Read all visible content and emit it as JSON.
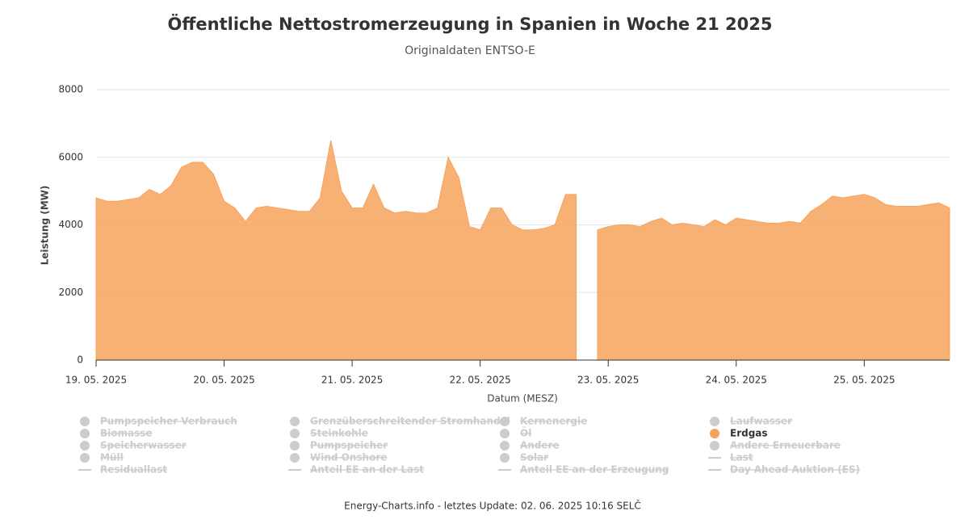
{
  "chart_data": {
    "type": "area",
    "title": "Öffentliche Nettostromerzeugung in Spanien in Woche 21 2025",
    "subtitle": "Originaldaten ENTSO-E",
    "x_label": "Datum (MESZ)",
    "y_label": "Leistung (MW)",
    "footer": "Energy-Charts.info - letztes Update: 02. 06. 2025 10:16 SELČ",
    "grid": true,
    "ylim": [
      0,
      8000
    ],
    "yticks": [
      0,
      2000,
      4000,
      6000,
      8000
    ],
    "xlim": [
      "2025-05-19T00:00",
      "2025-05-25T16:00"
    ],
    "xticks": [
      {
        "value": "2025-05-19T00:00",
        "label": "19. 05. 2025"
      },
      {
        "value": "2025-05-20T00:00",
        "label": "20. 05. 2025"
      },
      {
        "value": "2025-05-21T00:00",
        "label": "21. 05. 2025"
      },
      {
        "value": "2025-05-22T00:00",
        "label": "22. 05. 2025"
      },
      {
        "value": "2025-05-23T00:00",
        "label": "23. 05. 2025"
      },
      {
        "value": "2025-05-24T00:00",
        "label": "24. 05. 2025"
      },
      {
        "value": "2025-05-25T00:00",
        "label": "25. 05. 2025"
      }
    ],
    "x": [
      "2025-05-19T00:00",
      "2025-05-19T02:00",
      "2025-05-19T04:00",
      "2025-05-19T06:00",
      "2025-05-19T08:00",
      "2025-05-19T10:00",
      "2025-05-19T12:00",
      "2025-05-19T14:00",
      "2025-05-19T16:00",
      "2025-05-19T18:00",
      "2025-05-19T20:00",
      "2025-05-19T22:00",
      "2025-05-20T00:00",
      "2025-05-20T02:00",
      "2025-05-20T04:00",
      "2025-05-20T06:00",
      "2025-05-20T08:00",
      "2025-05-20T10:00",
      "2025-05-20T12:00",
      "2025-05-20T14:00",
      "2025-05-20T16:00",
      "2025-05-20T18:00",
      "2025-05-20T20:00",
      "2025-05-20T22:00",
      "2025-05-21T00:00",
      "2025-05-21T02:00",
      "2025-05-21T04:00",
      "2025-05-21T06:00",
      "2025-05-21T08:00",
      "2025-05-21T10:00",
      "2025-05-21T12:00",
      "2025-05-21T14:00",
      "2025-05-21T16:00",
      "2025-05-21T18:00",
      "2025-05-21T20:00",
      "2025-05-21T22:00",
      "2025-05-22T00:00",
      "2025-05-22T02:00",
      "2025-05-22T04:00",
      "2025-05-22T06:00",
      "2025-05-22T08:00",
      "2025-05-22T10:00",
      "2025-05-22T12:00",
      "2025-05-22T14:00",
      "2025-05-22T16:00",
      "2025-05-22T18:00",
      "2025-05-22T20:00",
      "2025-05-22T22:00",
      "2025-05-23T00:00",
      "2025-05-23T02:00",
      "2025-05-23T04:00",
      "2025-05-23T06:00",
      "2025-05-23T08:00",
      "2025-05-23T10:00",
      "2025-05-23T12:00",
      "2025-05-23T14:00",
      "2025-05-23T16:00",
      "2025-05-23T18:00",
      "2025-05-23T20:00",
      "2025-05-23T22:00",
      "2025-05-24T00:00",
      "2025-05-24T02:00",
      "2025-05-24T04:00",
      "2025-05-24T06:00",
      "2025-05-24T08:00",
      "2025-05-24T10:00",
      "2025-05-24T12:00",
      "2025-05-24T14:00",
      "2025-05-24T16:00",
      "2025-05-24T18:00",
      "2025-05-24T20:00",
      "2025-05-24T22:00",
      "2025-05-25T00:00",
      "2025-05-25T02:00",
      "2025-05-25T04:00",
      "2025-05-25T06:00",
      "2025-05-25T08:00",
      "2025-05-25T10:00",
      "2025-05-25T12:00",
      "2025-05-25T14:00",
      "2025-05-25T16:00"
    ],
    "series": [
      {
        "name": "Erdgas",
        "color": "#f7a35c",
        "values": [
          4800,
          4700,
          4700,
          4750,
          4800,
          5050,
          4900,
          5150,
          5700,
          5850,
          5850,
          5500,
          4700,
          4500,
          4100,
          4500,
          4550,
          4500,
          4450,
          4400,
          4400,
          4800,
          6500,
          5000,
          4500,
          4500,
          5200,
          4500,
          4350,
          4400,
          4350,
          4350,
          4500,
          6000,
          5400,
          3950,
          3850,
          4500,
          4500,
          4000,
          3850,
          3850,
          3900,
          4000,
          4900,
          4900,
          null,
          3850,
          3950,
          4000,
          4000,
          3950,
          4100,
          4200,
          4000,
          4050,
          4000,
          3950,
          4150,
          4000,
          4200,
          4150,
          4100,
          4050,
          4050,
          4100,
          4050,
          4400,
          4600,
          4850,
          4800,
          4850,
          4900,
          4800,
          4600,
          4550,
          4550,
          4550,
          4600,
          4650,
          4500
        ]
      }
    ],
    "hidden_series": [
      {
        "name": "Pumpspeicher Verbrauch",
        "symbol": "dot"
      },
      {
        "name": "Grenzüberschreitender Stromhandel",
        "symbol": "dot"
      },
      {
        "name": "Kernenergie",
        "symbol": "dot"
      },
      {
        "name": "Laufwasser",
        "symbol": "dot"
      },
      {
        "name": "Biomasse",
        "symbol": "dot"
      },
      {
        "name": "Steinkohle",
        "symbol": "dot"
      },
      {
        "name": "Öl",
        "symbol": "dot"
      },
      {
        "name": "Speicherwasser",
        "symbol": "dot"
      },
      {
        "name": "Pumpspeicher",
        "symbol": "dot"
      },
      {
        "name": "Andere",
        "symbol": "dot"
      },
      {
        "name": "Andere Erneuerbare",
        "symbol": "dot"
      },
      {
        "name": "Müll",
        "symbol": "dot"
      },
      {
        "name": "Wind Onshore",
        "symbol": "dot"
      },
      {
        "name": "Solar",
        "symbol": "dot"
      },
      {
        "name": "Last",
        "symbol": "line"
      },
      {
        "name": "Residuallast",
        "symbol": "line"
      },
      {
        "name": "Anteil EE an der Last",
        "symbol": "line"
      },
      {
        "name": "Anteil EE an der Erzeugung",
        "symbol": "line"
      },
      {
        "name": "Day Ahead Auktion (ES)",
        "symbol": "line"
      }
    ]
  }
}
